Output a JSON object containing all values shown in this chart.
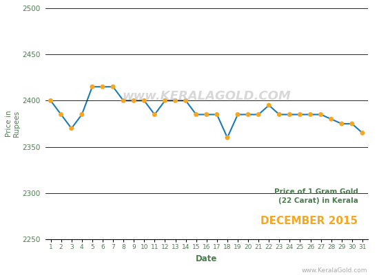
{
  "dates": [
    1,
    2,
    3,
    4,
    5,
    6,
    7,
    8,
    9,
    10,
    11,
    12,
    13,
    14,
    15,
    16,
    17,
    18,
    19,
    20,
    21,
    22,
    23,
    24,
    25,
    26,
    27,
    28,
    29,
    30,
    31
  ],
  "prices": [
    2400,
    2385,
    2370,
    2385,
    2415,
    2415,
    2415,
    2400,
    2400,
    2400,
    2385,
    2400,
    2400,
    2400,
    2385,
    2385,
    2385,
    2360,
    2385,
    2385,
    2385,
    2395,
    2385,
    2385,
    2385,
    2385,
    2385,
    2380,
    2375,
    2375,
    2365
  ],
  "line_color": "#1a7ab5",
  "marker_color": "#f5a623",
  "marker_size": 5,
  "line_width": 1.5,
  "ylim": [
    2250,
    2500
  ],
  "yticks": [
    2250,
    2300,
    2350,
    2400,
    2450,
    2500
  ],
  "xlabel": "Date",
  "ylabel": "Price in\nRupees",
  "title_line1": "Price of 1 Gram Gold",
  "title_line2": "(22 Carat) in Kerala",
  "title_line3": "DECEMBER 2015",
  "title_color1": "#4a7c4e",
  "title_color2": "#f5a623",
  "watermark": "www.KERALAGOLD.COM",
  "watermark_color": "#c8c8c8",
  "footer_text": "www.KeralaGold.com",
  "footer_color": "#aaaaaa",
  "bg_color": "#ffffff",
  "grid_color": "#000000",
  "axis_label_color": "#4a7c4e",
  "tick_label_color": "#4a7c4e"
}
